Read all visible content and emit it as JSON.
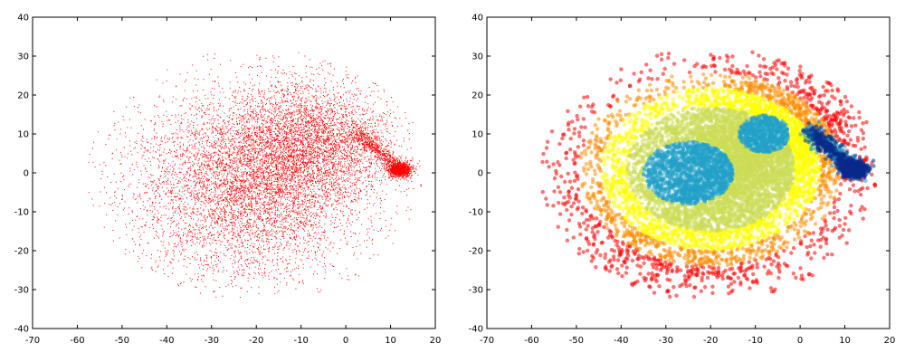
{
  "chart_data": [
    {
      "type": "scatter",
      "style": "single-color",
      "marker_color": "#ff0000",
      "xlim": [
        -70,
        20
      ],
      "ylim": [
        -40,
        40
      ],
      "xticks": [
        -70,
        -60,
        -50,
        -40,
        -30,
        -20,
        -10,
        0,
        10,
        20
      ],
      "yticks": [
        -40,
        -30,
        -20,
        -10,
        0,
        10,
        20,
        30,
        40
      ],
      "xtick_labels": [
        "-70",
        "-60",
        "-50",
        "-40",
        "-30",
        "-20",
        "-10",
        "0",
        "10",
        "20"
      ],
      "ytick_labels": [
        "-40",
        "-30",
        "-20",
        "-10",
        "0",
        "10",
        "20",
        "30",
        "40"
      ],
      "grid": false,
      "points": {
        "main_cluster": {
          "center": [
            -22,
            -3
          ],
          "spread": [
            13,
            12
          ],
          "x_range": [
            -62,
            17
          ],
          "y_range": [
            -38,
            31
          ]
        },
        "tail": {
          "from": [
            2,
            11
          ],
          "to": [
            13,
            0
          ]
        },
        "dense_tip": {
          "center": [
            12,
            1
          ]
        }
      }
    },
    {
      "type": "scatter",
      "style": "density-colored",
      "colormap": [
        "#ff0000",
        "#ff8c00",
        "#ffff00",
        "#ccdd55",
        "#22a0c8",
        "#0a2a8a"
      ],
      "xlim": [
        -70,
        20
      ],
      "ylim": [
        -40,
        40
      ],
      "xticks": [
        -70,
        -60,
        -50,
        -40,
        -30,
        -20,
        -10,
        0,
        10,
        20
      ],
      "yticks": [
        -40,
        -30,
        -20,
        -10,
        0,
        10,
        20,
        30,
        40
      ],
      "xtick_labels": [
        "-70",
        "-60",
        "-50",
        "-40",
        "-30",
        "-20",
        "-10",
        "0",
        "10",
        "20"
      ],
      "ytick_labels": [
        "-40",
        "-30",
        "-20",
        "-10",
        "0",
        "10",
        "20",
        "30",
        "40"
      ],
      "grid": false,
      "density_peaks": [
        {
          "center": [
            -25,
            0
          ],
          "level": "medium-high"
        },
        {
          "center": [
            -8,
            10
          ],
          "level": "medium-high"
        },
        {
          "center": [
            12,
            1
          ],
          "level": "highest"
        }
      ]
    }
  ]
}
